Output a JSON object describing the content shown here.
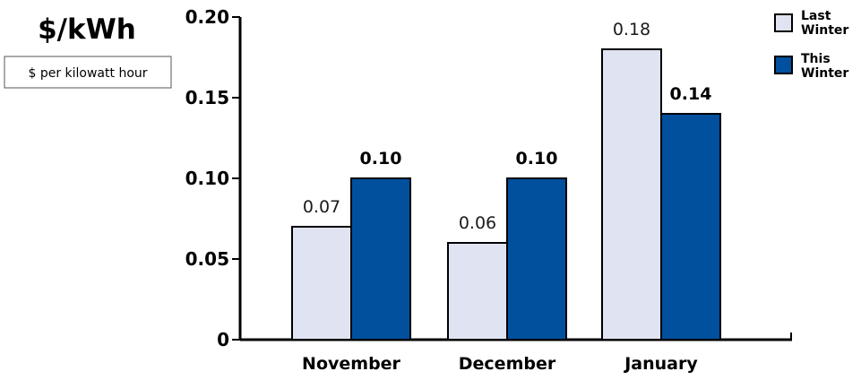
{
  "unit": {
    "title": "$/kWh",
    "subtitle": "$ per kilowatt hour"
  },
  "legend": {
    "items": [
      {
        "line1": "Last",
        "line2": "Winter",
        "color": "#e0e3f1"
      },
      {
        "line1": "This",
        "line2": "Winter",
        "color": "#00509e"
      }
    ]
  },
  "colors": {
    "last_winter": "#e0e3f1",
    "this_winter": "#00509e",
    "outline": "#000000"
  },
  "chart_data": {
    "type": "bar",
    "title": "",
    "xlabel": "",
    "ylabel": "$/kWh",
    "categories": [
      "November",
      "December",
      "January"
    ],
    "ylim": [
      0,
      0.2
    ],
    "yticks": [
      "0",
      "0.05",
      "0.10",
      "0.15",
      "0.20"
    ],
    "grid": false,
    "legend_position": "top-right",
    "series": [
      {
        "name": "Last Winter",
        "values": [
          0.07,
          0.06,
          0.18
        ],
        "labels": [
          "0.07",
          "0.06",
          "0.18"
        ]
      },
      {
        "name": "This Winter",
        "values": [
          0.1,
          0.1,
          0.14
        ],
        "labels": [
          "0.10",
          "0.10",
          "0.14"
        ]
      }
    ]
  }
}
